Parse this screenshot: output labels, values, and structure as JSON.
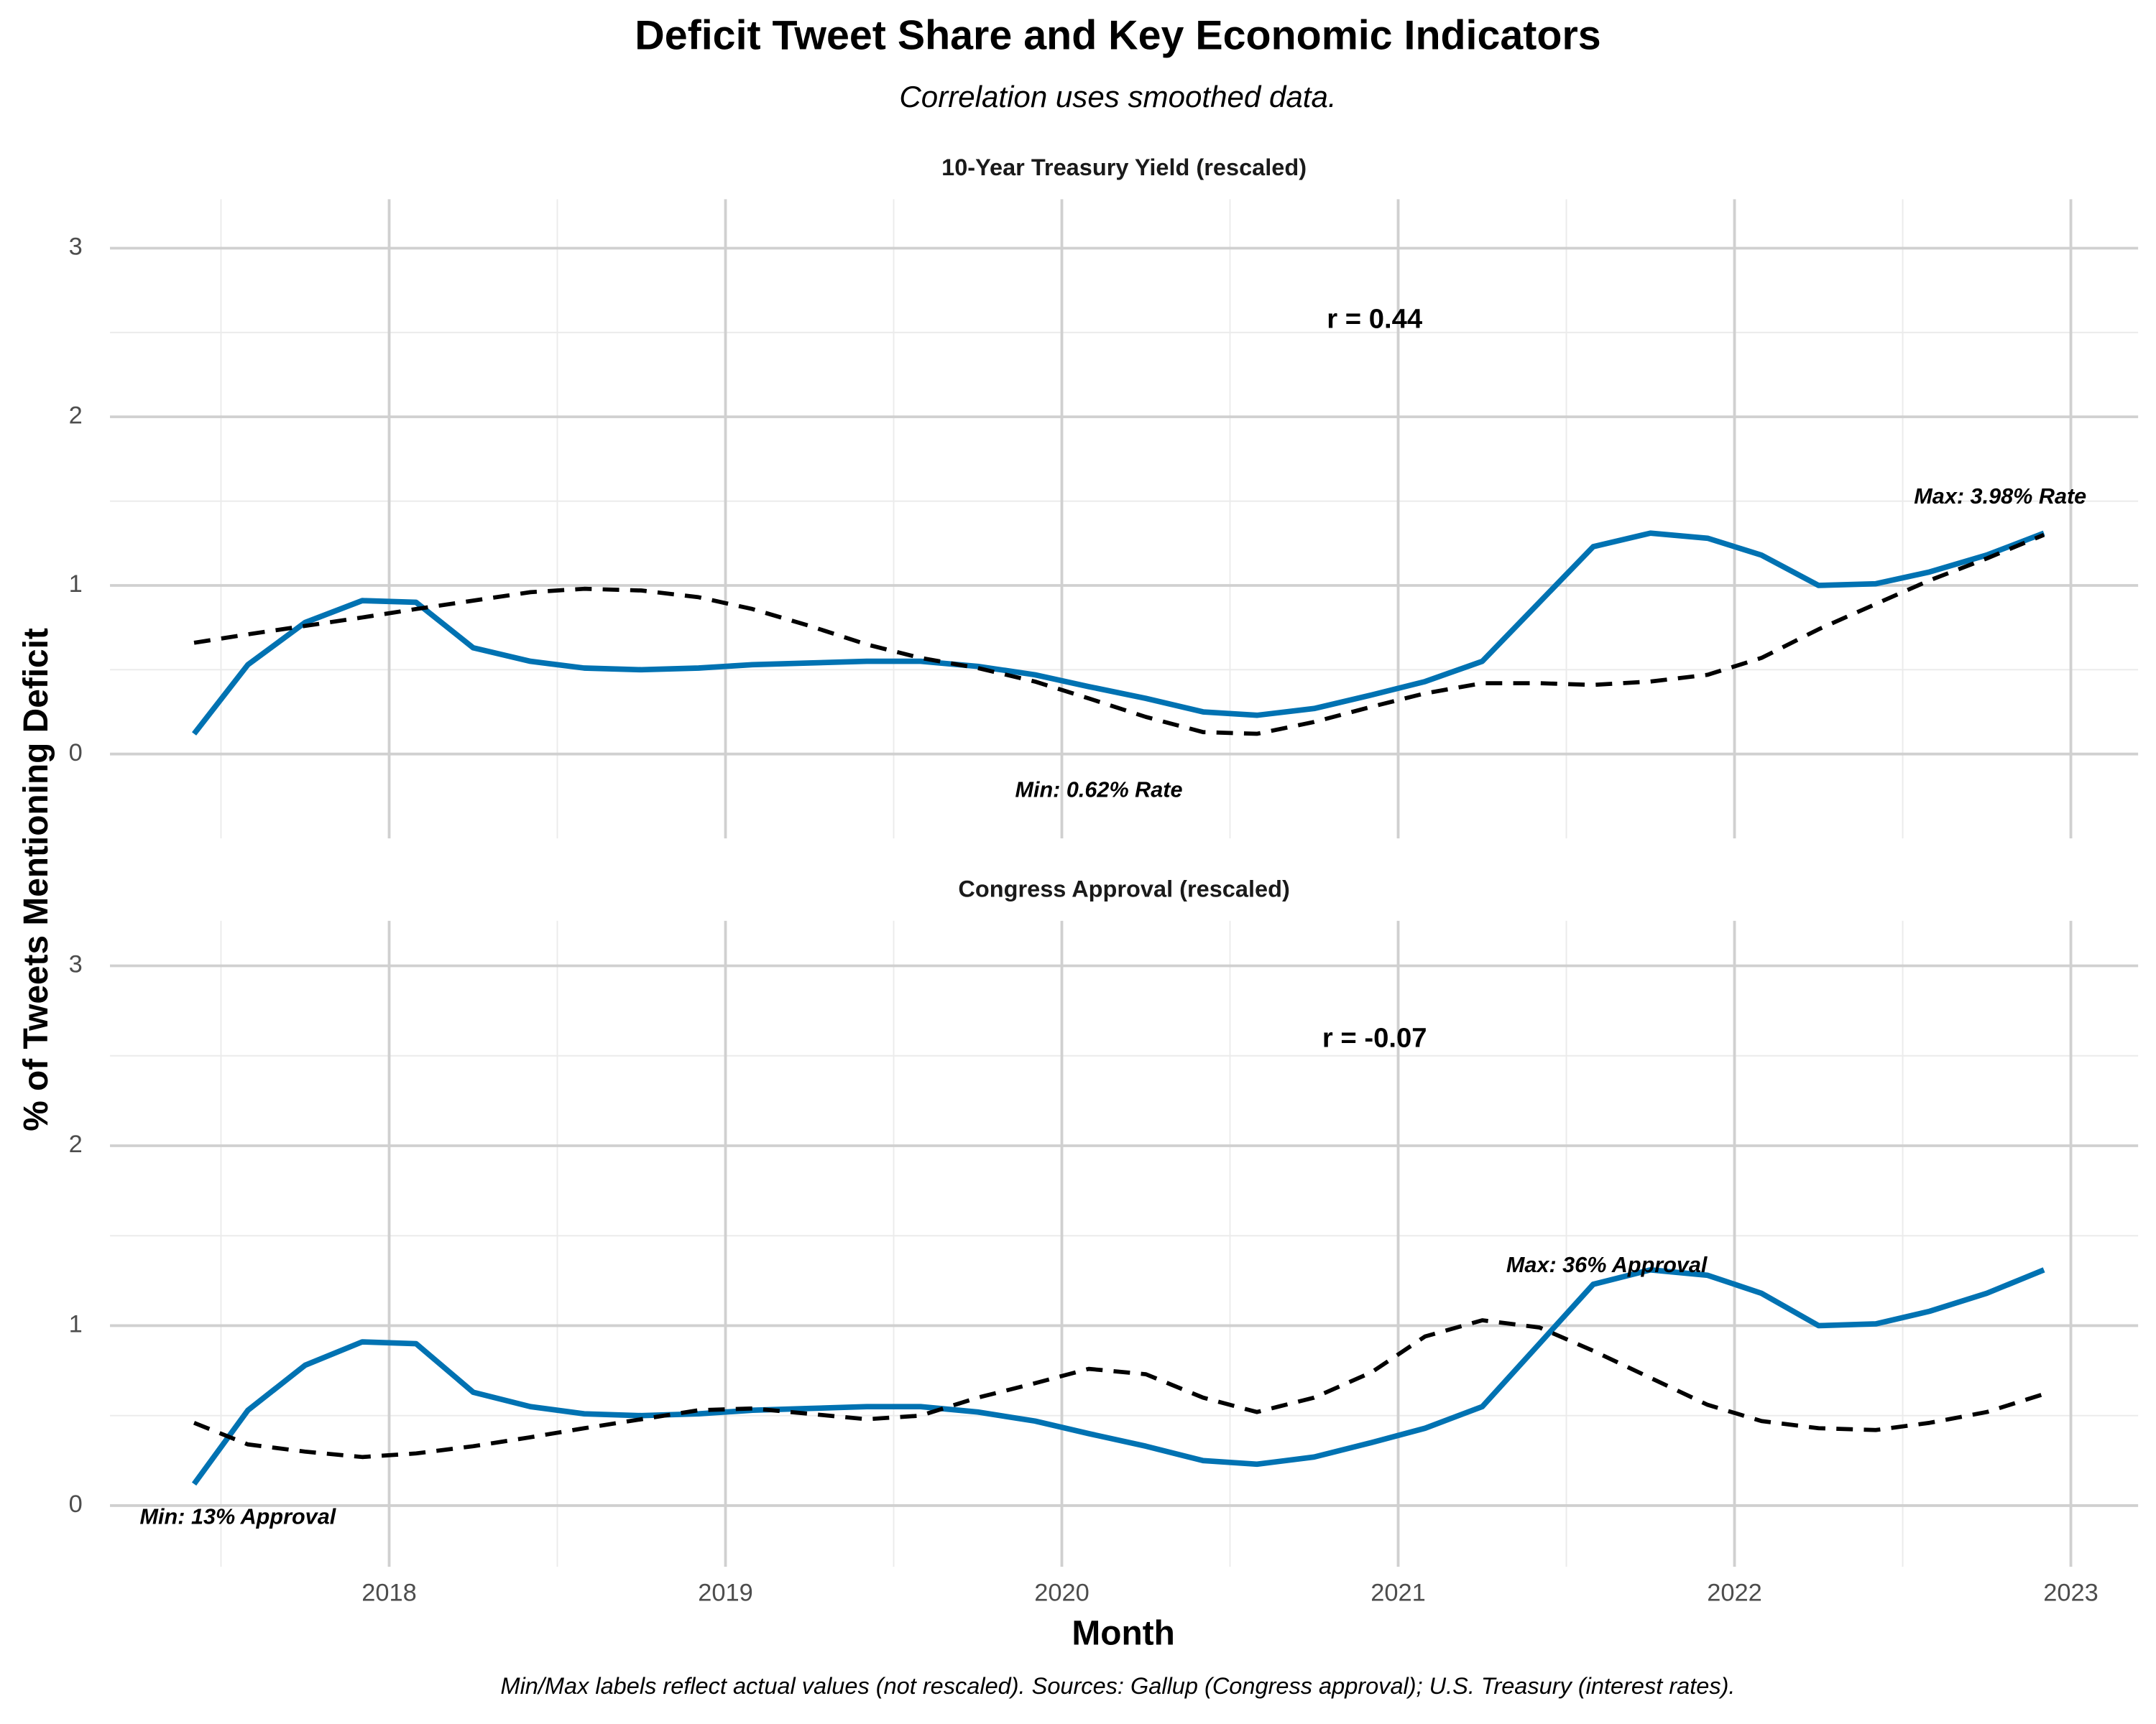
{
  "chart_data": {
    "type": "line",
    "title": "Deficit Tweet Share and Key Economic Indicators",
    "subtitle": "Correlation uses smoothed data.",
    "x_label": "Month",
    "y_label": "% of Tweets Mentioning Deficit",
    "caption": "Min/Max labels reflect actual values (not rescaled). Sources: Gallup (Congress approval); U.S. Treasury (interest rates).",
    "grid": true,
    "xlim": [
      2017.17,
      2023.2
    ],
    "xticks": [
      2018,
      2019,
      2020,
      2021,
      2022,
      2023
    ],
    "yticks": [
      0,
      1,
      2,
      3
    ],
    "x": [
      2017.42,
      2017.58,
      2017.75,
      2017.92,
      2018.08,
      2018.25,
      2018.42,
      2018.58,
      2018.75,
      2018.92,
      2019.08,
      2019.25,
      2019.42,
      2019.58,
      2019.75,
      2019.92,
      2020.08,
      2020.25,
      2020.42,
      2020.58,
      2020.75,
      2020.92,
      2021.08,
      2021.25,
      2021.42,
      2021.58,
      2021.75,
      2021.92,
      2022.08,
      2022.25,
      2022.42,
      2022.58,
      2022.75,
      2022.92
    ],
    "facets": [
      {
        "title": "10-Year Treasury Yield (rescaled)",
        "ylim": [
          -0.5,
          3.29
        ],
        "series": [
          {
            "color": "#0072B2",
            "style": "solid",
            "values": [
              0.12,
              0.53,
              0.78,
              0.91,
              0.9,
              0.63,
              0.55,
              0.51,
              0.5,
              0.51,
              0.53,
              0.54,
              0.55,
              0.55,
              0.52,
              0.47,
              0.4,
              0.33,
              0.25,
              0.23,
              0.27,
              0.35,
              0.43,
              0.55,
              0.9,
              1.23,
              1.31,
              1.28,
              1.18,
              1.0,
              1.01,
              1.08,
              1.18,
              1.31
            ]
          },
          {
            "color": "#000000",
            "style": "dashed",
            "values": [
              0.66,
              0.71,
              0.76,
              0.81,
              0.86,
              0.91,
              0.96,
              0.98,
              0.97,
              0.93,
              0.86,
              0.76,
              0.65,
              0.57,
              0.51,
              0.43,
              0.33,
              0.22,
              0.13,
              0.12,
              0.19,
              0.28,
              0.36,
              0.42,
              0.42,
              0.41,
              0.43,
              0.47,
              0.57,
              0.74,
              0.89,
              1.03,
              1.16,
              1.3
            ]
          }
        ],
        "annotations": [
          {
            "text": "r = 0.44",
            "x": 2020.93,
            "y": 2.57,
            "style": "bold"
          },
          {
            "text": "Min: 0.62% Rate",
            "x": 2020.11,
            "y": -0.22,
            "style": "bold-italic"
          },
          {
            "text": "Max: 3.98% Rate",
            "x": 2022.79,
            "y": 1.52,
            "style": "bold-italic"
          }
        ]
      },
      {
        "title": "Congress Approval (rescaled)",
        "ylim": [
          -0.34,
          3.25
        ],
        "series": [
          {
            "color": "#0072B2",
            "style": "solid",
            "values": [
              0.12,
              0.53,
              0.78,
              0.91,
              0.9,
              0.63,
              0.55,
              0.51,
              0.5,
              0.51,
              0.53,
              0.54,
              0.55,
              0.55,
              0.52,
              0.47,
              0.4,
              0.33,
              0.25,
              0.23,
              0.27,
              0.35,
              0.43,
              0.55,
              0.9,
              1.23,
              1.31,
              1.28,
              1.18,
              1.0,
              1.01,
              1.08,
              1.18,
              1.31
            ]
          },
          {
            "color": "#000000",
            "style": "dashed",
            "values": [
              0.46,
              0.34,
              0.3,
              0.27,
              0.29,
              0.33,
              0.38,
              0.43,
              0.48,
              0.53,
              0.54,
              0.51,
              0.48,
              0.5,
              0.6,
              0.68,
              0.76,
              0.73,
              0.6,
              0.52,
              0.6,
              0.74,
              0.94,
              1.03,
              0.99,
              0.86,
              0.71,
              0.56,
              0.47,
              0.43,
              0.42,
              0.46,
              0.52,
              0.62
            ]
          }
        ],
        "annotations": [
          {
            "text": "r = -0.07",
            "x": 2020.93,
            "y": 2.59,
            "style": "bold"
          },
          {
            "text": "Max: 36% Approval",
            "x": 2021.62,
            "y": 1.33,
            "style": "bold-italic"
          },
          {
            "text": "Min: 13% Approval",
            "x": 2017.55,
            "y": -0.07,
            "style": "bold-italic"
          }
        ]
      }
    ]
  }
}
